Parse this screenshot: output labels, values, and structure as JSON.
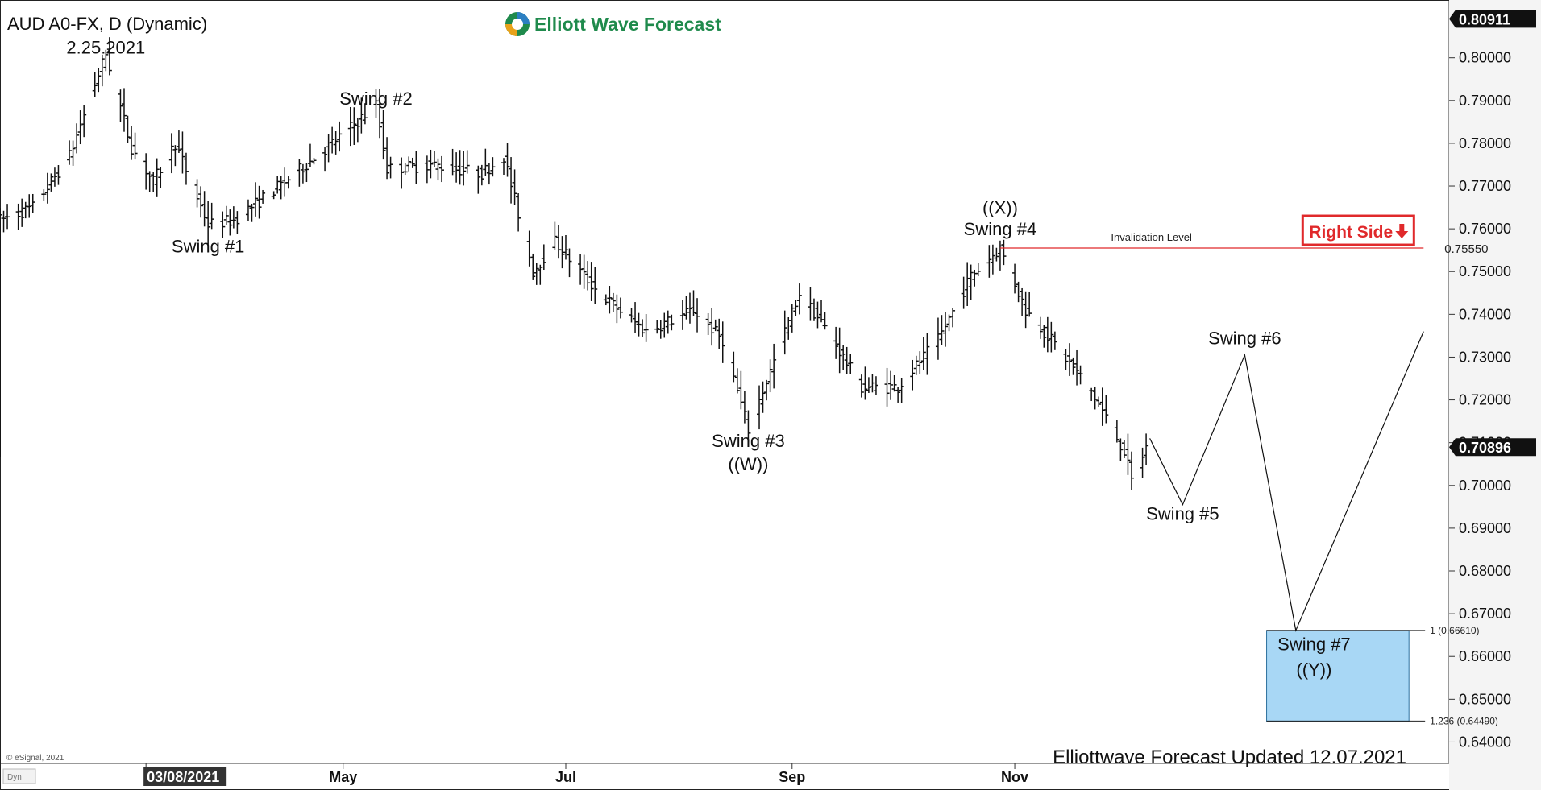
{
  "header": {
    "symbol": "AUD A0-FX, D (Dynamic)",
    "brand": "Elliott Wave Forecast"
  },
  "footer": {
    "copyright": "© eSignal, 2021",
    "dyn_label": "Dyn",
    "updated": "Elliottwave Forecast Updated 12.07.2021"
  },
  "colors": {
    "brand_green": "#1f8a4c",
    "invalidation_red": "#e0292b",
    "target_box_fill": "#a8d7f5",
    "target_box_stroke": "#2b6f9e",
    "axis_label_bg": "#111111"
  },
  "chart_data": {
    "type": "ohlc",
    "title": "AUD A0-FX, D (Dynamic)",
    "ylim": [
      0.635,
      0.8135
    ],
    "y_ticks": [
      "0.64000",
      "0.65000",
      "0.66000",
      "0.67000",
      "0.68000",
      "0.69000",
      "0.70000",
      "0.71000",
      "0.72000",
      "0.73000",
      "0.74000",
      "0.75000",
      "0.76000",
      "0.77000",
      "0.78000",
      "0.79000",
      "0.80000"
    ],
    "x_labels": [
      "03/08/2021",
      "May",
      "Jul",
      "Sep",
      "Nov"
    ],
    "x_label_dates": [
      "2021-03-08",
      "2021-05-01",
      "2021-07-01",
      "2021-09-01",
      "2021-11-01"
    ],
    "x_range": [
      "2021-01-27",
      "2022-02-28"
    ],
    "current_price": "0.70896",
    "top_price": "0.80911",
    "price_path": [
      {
        "date": "2021-01-27",
        "price": 0.762
      },
      {
        "date": "2021-02-05",
        "price": 0.765
      },
      {
        "date": "2021-02-15",
        "price": 0.777
      },
      {
        "date": "2021-02-25",
        "price": 0.801
      },
      {
        "date": "2021-03-04",
        "price": 0.779
      },
      {
        "date": "2021-03-10",
        "price": 0.771
      },
      {
        "date": "2021-03-16",
        "price": 0.78
      },
      {
        "date": "2021-03-25",
        "price": 0.761
      },
      {
        "date": "2021-04-01",
        "price": 0.762
      },
      {
        "date": "2021-04-15",
        "price": 0.771
      },
      {
        "date": "2021-04-28",
        "price": 0.78
      },
      {
        "date": "2021-05-10",
        "price": 0.789
      },
      {
        "date": "2021-05-13",
        "price": 0.774
      },
      {
        "date": "2021-05-25",
        "price": 0.775
      },
      {
        "date": "2021-06-08",
        "price": 0.773
      },
      {
        "date": "2021-06-14",
        "price": 0.777
      },
      {
        "date": "2021-06-22",
        "price": 0.75
      },
      {
        "date": "2021-06-28",
        "price": 0.757
      },
      {
        "date": "2021-07-10",
        "price": 0.745
      },
      {
        "date": "2021-07-23",
        "price": 0.736
      },
      {
        "date": "2021-08-05",
        "price": 0.741
      },
      {
        "date": "2021-08-13",
        "price": 0.734
      },
      {
        "date": "2021-08-20",
        "price": 0.713
      },
      {
        "date": "2021-08-27",
        "price": 0.729
      },
      {
        "date": "2021-09-03",
        "price": 0.745
      },
      {
        "date": "2021-09-10",
        "price": 0.737
      },
      {
        "date": "2021-09-20",
        "price": 0.723
      },
      {
        "date": "2021-09-30",
        "price": 0.723
      },
      {
        "date": "2021-10-11",
        "price": 0.734
      },
      {
        "date": "2021-10-20",
        "price": 0.749
      },
      {
        "date": "2021-10-28",
        "price": 0.7555
      },
      {
        "date": "2021-11-04",
        "price": 0.741
      },
      {
        "date": "2021-11-12",
        "price": 0.733
      },
      {
        "date": "2021-11-22",
        "price": 0.722
      },
      {
        "date": "2021-12-01",
        "price": 0.708
      },
      {
        "date": "2021-12-03",
        "price": 0.701
      },
      {
        "date": "2021-12-07",
        "price": 0.709
      }
    ],
    "projection": [
      {
        "date": "2021-12-08",
        "price": 0.711
      },
      {
        "date": "2021-12-17",
        "price": 0.6955
      },
      {
        "date": "2022-01-03",
        "price": 0.7305
      },
      {
        "date": "2022-01-17",
        "price": 0.6661
      },
      {
        "date": "2022-02-21",
        "price": 0.736
      }
    ],
    "invalidation": {
      "label": "Invalidation Level",
      "value": 0.7555,
      "value_label": "0.75550",
      "start_date": "2021-10-28",
      "end_date": "2022-02-21"
    },
    "target_zone": {
      "start_date": "2022-01-09",
      "end_date": "2022-02-17",
      "top": 0.6661,
      "bottom": 0.6449,
      "top_label": "1 (0.66610)",
      "bottom_label": "1.236 (0.64490)"
    },
    "right_side_label": "Right Side",
    "annotations": [
      {
        "text": "2.25.2021",
        "date": "2021-02-25",
        "price": 0.801,
        "pos": "above"
      },
      {
        "text": "Swing #1",
        "date": "2021-03-25",
        "price": 0.7545,
        "pos": "below"
      },
      {
        "text": "Swing #2",
        "date": "2021-05-10",
        "price": 0.789,
        "pos": "above"
      },
      {
        "text": "Swing #3",
        "date": "2021-08-20",
        "price": 0.709,
        "pos": "below"
      },
      {
        "text": "((W))",
        "date": "2021-08-20",
        "price": 0.7035,
        "pos": "below"
      },
      {
        "text": "((X))",
        "date": "2021-10-28",
        "price": 0.7635,
        "pos": "above"
      },
      {
        "text": "Swing #4",
        "date": "2021-10-28",
        "price": 0.7585,
        "pos": "above"
      },
      {
        "text": "Swing #5",
        "date": "2021-12-17",
        "price": 0.692,
        "pos": "below"
      },
      {
        "text": "Swing #6",
        "date": "2022-01-03",
        "price": 0.733,
        "pos": "above"
      },
      {
        "text": "Swing #7",
        "date": "2022-01-22",
        "price": 0.6615,
        "pos": "below"
      },
      {
        "text": "((Y))",
        "date": "2022-01-22",
        "price": 0.6555,
        "pos": "below"
      }
    ]
  }
}
